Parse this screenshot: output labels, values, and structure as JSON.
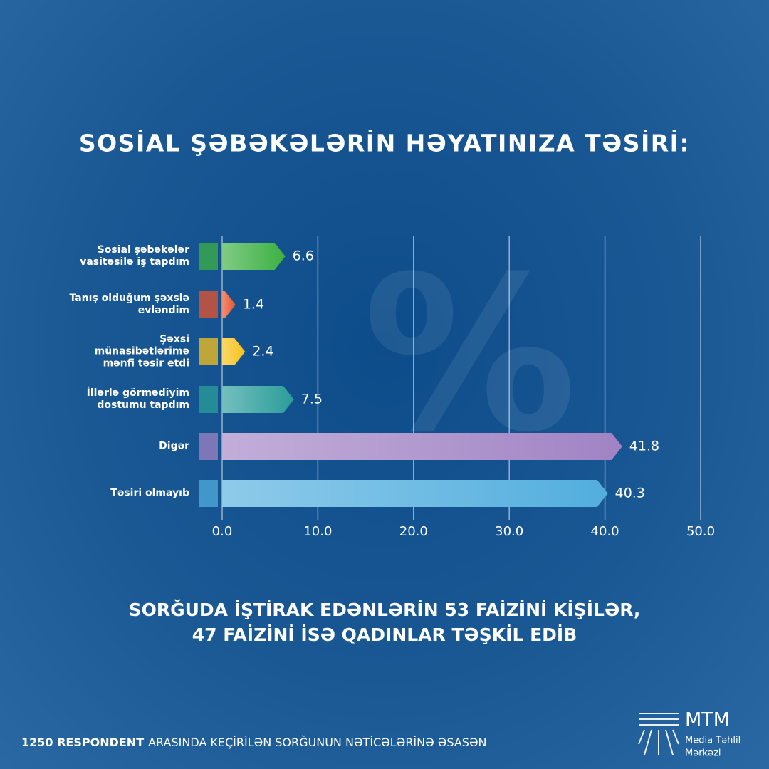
{
  "chart_data": {
    "type": "hbar",
    "title": "SOSİAL ŞƏBƏKƏLƏRİN HƏYATINIZA TƏSİRİ:",
    "categories": [
      "Sosial şəbəkələr vasitəsilə iş tapdım",
      "Tanış olduğum şəxslə evləndim",
      "Şəxsi münasibətlərimə mənfi təsir etdi",
      "İllərlə görmədiyim dostumu tapdım",
      "Digər",
      "Təsiri olmayıb"
    ],
    "values": [
      6.6,
      1.4,
      2.4,
      7.5,
      41.8,
      40.3
    ],
    "colors": [
      "#3cb043",
      "#e8532c",
      "#f7c21b",
      "#2a9d9a",
      "#a183c4",
      "#52aede"
    ],
    "xlim": [
      0,
      50
    ],
    "xticks": [
      {
        "value": 0,
        "label": "0.0"
      },
      {
        "value": 10,
        "label": "10.0"
      },
      {
        "value": 20,
        "label": "20.0"
      },
      {
        "value": 30,
        "label": "30.0"
      },
      {
        "value": 40,
        "label": "40.0"
      },
      {
        "value": 50,
        "label": "50.0"
      }
    ],
    "grid": true,
    "watermark": "%",
    "note": [
      "SORĞUDA İŞTİRAK EDƏNLƏRİN 53 FAİZİNİ KİŞİLƏR,",
      "47 FAİZİNİ İSƏ QADINLAR TƏŞKİL EDİB"
    ],
    "footer": {
      "bold": "1250 RESPONDENT",
      "rest": "ARASINDA KEÇİRİLƏN SORĞUNUN NƏTİCƏLƏRİNƏ ƏSASƏN"
    },
    "logo": {
      "name": "MTM",
      "line1": "Media Təhlil",
      "line2": "Mərkəzi"
    }
  }
}
